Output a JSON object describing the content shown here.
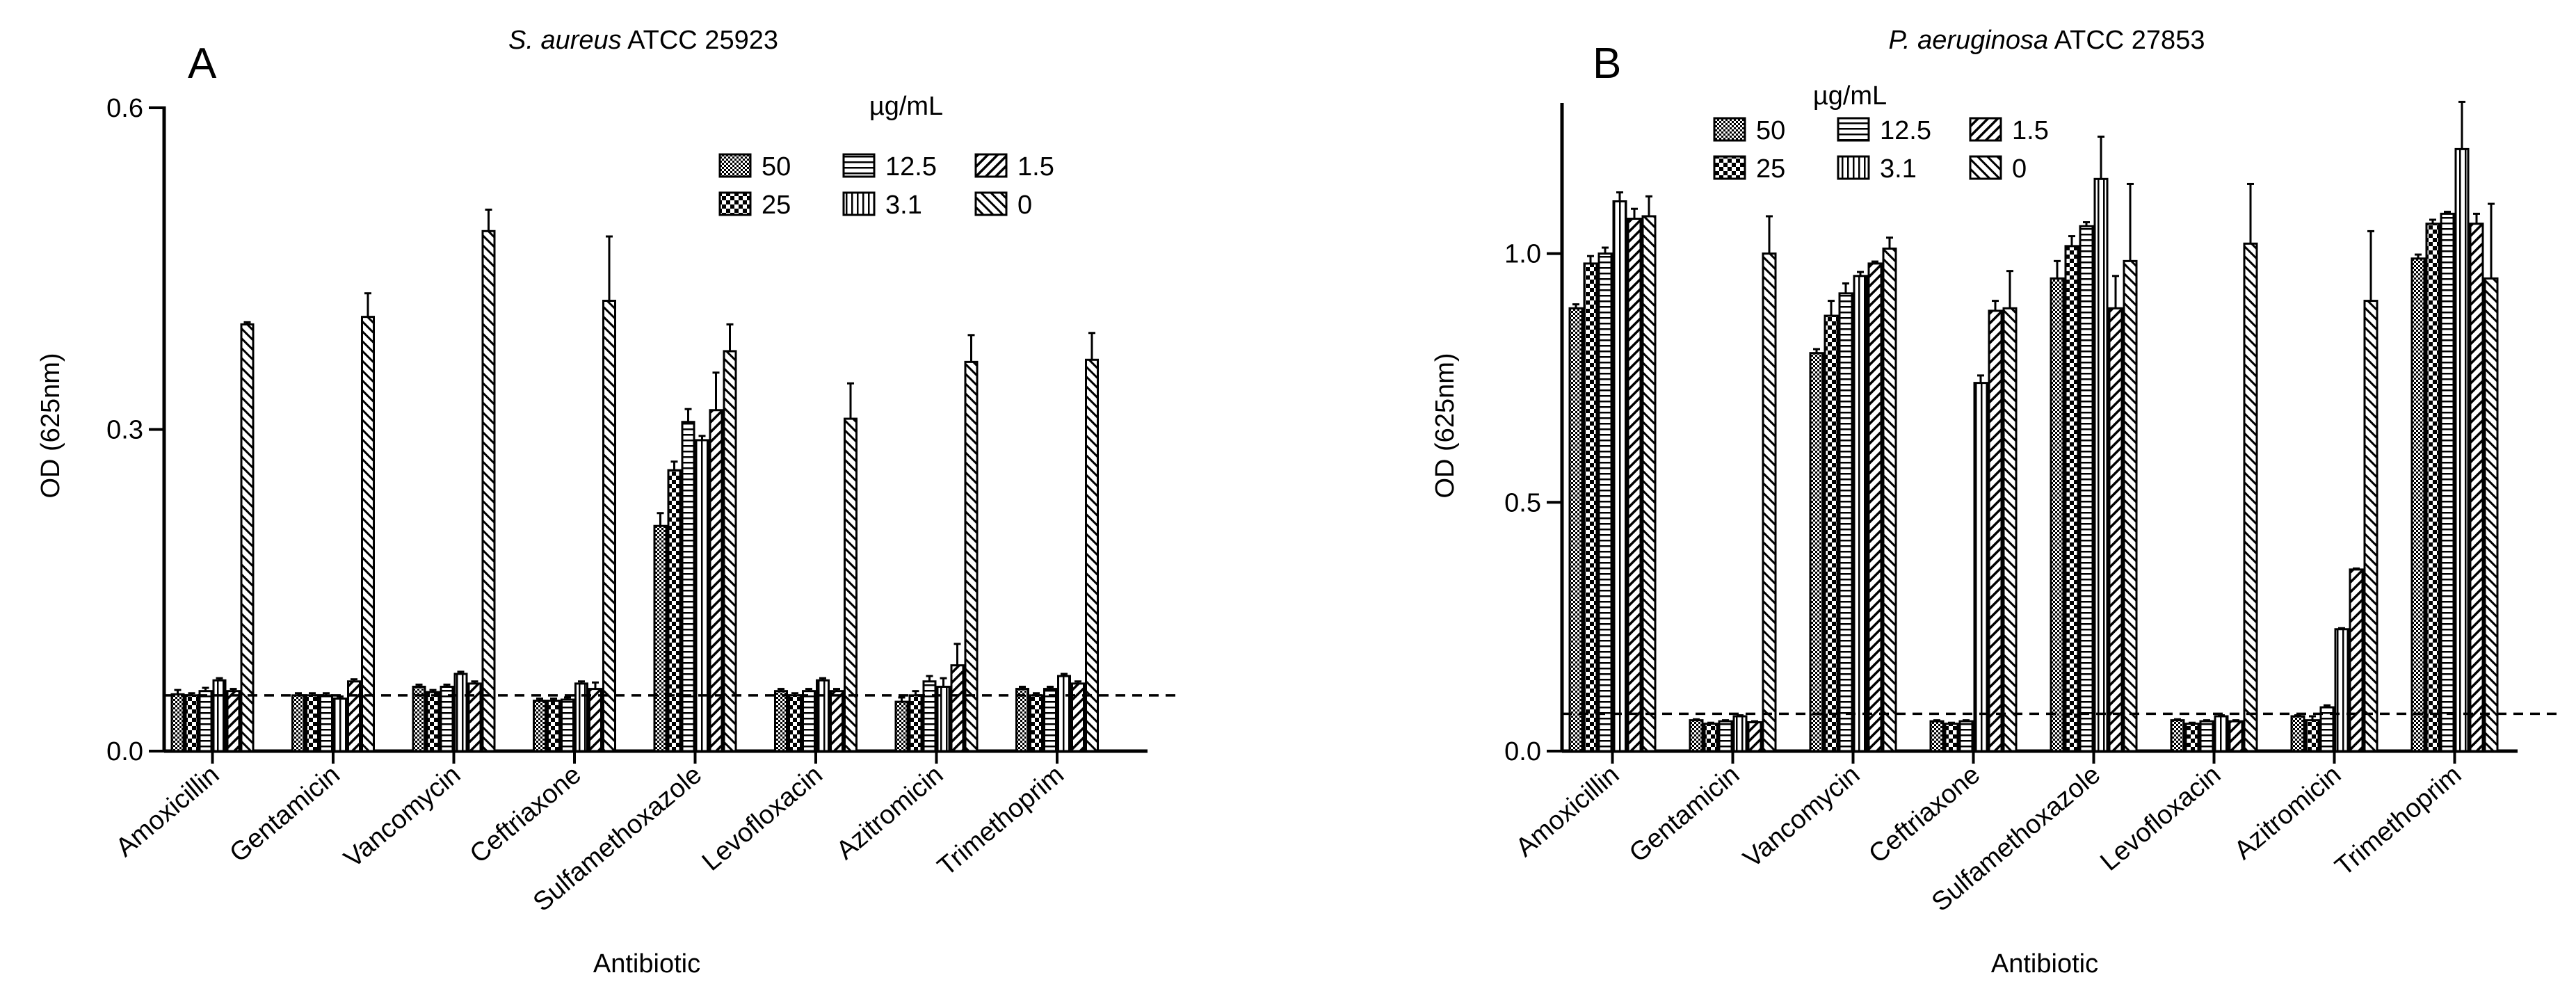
{
  "legend": {
    "unit": "µg/mL",
    "labels": [
      "50",
      "25",
      "12.5",
      "3.1",
      "1.5",
      "0"
    ]
  },
  "chart_data": [
    {
      "type": "bar",
      "panel_letter": "A",
      "title_italic": "S. aureus",
      "title_rest": "ATCC 25923",
      "xlabel": "Antibiotic",
      "ylabel": "OD (625nm)",
      "ylim": [
        0,
        0.6
      ],
      "yticks": [
        0.0,
        0.3,
        0.6
      ],
      "ytick_labels": [
        "0.0",
        "0.3",
        "0.6"
      ],
      "threshold": 0.052,
      "categories": [
        "Amoxicillin",
        "Gentamicin",
        "Vancomycin",
        "Ceftriaxone",
        "Sulfamethoxazole",
        "Levofloxacin",
        "Azitromicin",
        "Trimethoprim"
      ],
      "series": [
        {
          "name": "50",
          "values": [
            0.053,
            0.052,
            0.06,
            0.047,
            0.21,
            0.056,
            0.046,
            0.058
          ],
          "errors": [
            0.004,
            0.002,
            0.002,
            0.002,
            0.012,
            0.002,
            0.004,
            0.002
          ]
        },
        {
          "name": "25",
          "values": [
            0.052,
            0.052,
            0.055,
            0.047,
            0.262,
            0.052,
            0.052,
            0.052
          ],
          "errors": [
            0.002,
            0.002,
            0.002,
            0.002,
            0.008,
            0.002,
            0.004,
            0.002
          ]
        },
        {
          "name": "12.5",
          "values": [
            0.056,
            0.052,
            0.06,
            0.048,
            0.307,
            0.056,
            0.065,
            0.058
          ],
          "errors": [
            0.003,
            0.002,
            0.002,
            0.002,
            0.012,
            0.002,
            0.005,
            0.002
          ]
        },
        {
          "name": "3.1",
          "values": [
            0.066,
            0.049,
            0.072,
            0.063,
            0.29,
            0.066,
            0.06,
            0.07
          ],
          "errors": [
            0.002,
            0.002,
            0.002,
            0.002,
            0.004,
            0.002,
            0.008,
            0.002
          ]
        },
        {
          "name": "1.5",
          "values": [
            0.056,
            0.065,
            0.063,
            0.058,
            0.318,
            0.056,
            0.08,
            0.063
          ],
          "errors": [
            0.002,
            0.002,
            0.002,
            0.006,
            0.035,
            0.002,
            0.02,
            0.002
          ]
        },
        {
          "name": "0",
          "values": [
            0.398,
            0.405,
            0.485,
            0.42,
            0.373,
            0.31,
            0.363,
            0.365
          ],
          "errors": [
            0.002,
            0.022,
            0.02,
            0.06,
            0.025,
            0.033,
            0.025,
            0.025
          ]
        }
      ]
    },
    {
      "type": "bar",
      "panel_letter": "B",
      "title_italic": "P. aeruginosa",
      "title_rest": "ATCC 27853",
      "xlabel": "Antibiotic",
      "ylabel": "OD (625nm)",
      "ylim": [
        0,
        1.3
      ],
      "yticks": [
        0.0,
        0.5,
        1.0
      ],
      "ytick_labels": [
        "0.0",
        "0.5",
        "1.0"
      ],
      "threshold": 0.075,
      "categories": [
        "Amoxicillin",
        "Gentamicin",
        "Vancomycin",
        "Ceftriaxone",
        "Sulfamethoxazole",
        "Levofloxacin",
        "Azitromicin",
        "Trimethoprim"
      ],
      "series": [
        {
          "name": "50",
          "values": [
            0.89,
            0.062,
            0.8,
            0.06,
            0.95,
            0.062,
            0.07,
            0.99
          ],
          "errors": [
            0.008,
            0.002,
            0.008,
            0.002,
            0.035,
            0.002,
            0.002,
            0.008
          ]
        },
        {
          "name": "25",
          "values": [
            0.98,
            0.055,
            0.875,
            0.055,
            1.015,
            0.055,
            0.062,
            1.06
          ],
          "errors": [
            0.015,
            0.002,
            0.03,
            0.002,
            0.02,
            0.002,
            0.008,
            0.008
          ]
        },
        {
          "name": "12.5",
          "values": [
            1.0,
            0.06,
            0.92,
            0.06,
            1.055,
            0.06,
            0.088,
            1.08
          ],
          "errors": [
            0.012,
            0.002,
            0.02,
            0.002,
            0.008,
            0.002,
            0.004,
            0.004
          ]
        },
        {
          "name": "3.1",
          "values": [
            1.105,
            0.07,
            0.955,
            0.74,
            1.15,
            0.07,
            0.245,
            1.21
          ],
          "errors": [
            0.018,
            0.002,
            0.008,
            0.015,
            0.085,
            0.002,
            0.002,
            0.095
          ]
        },
        {
          "name": "1.5",
          "values": [
            1.07,
            0.058,
            0.98,
            0.885,
            0.89,
            0.06,
            0.365,
            1.06
          ],
          "errors": [
            0.02,
            0.002,
            0.004,
            0.02,
            0.065,
            0.002,
            0.002,
            0.02
          ]
        },
        {
          "name": "0",
          "values": [
            1.075,
            1.0,
            1.01,
            0.89,
            0.985,
            1.02,
            0.905,
            0.95
          ],
          "errors": [
            0.04,
            0.075,
            0.022,
            0.075,
            0.155,
            0.12,
            0.14,
            0.15
          ]
        }
      ]
    }
  ]
}
